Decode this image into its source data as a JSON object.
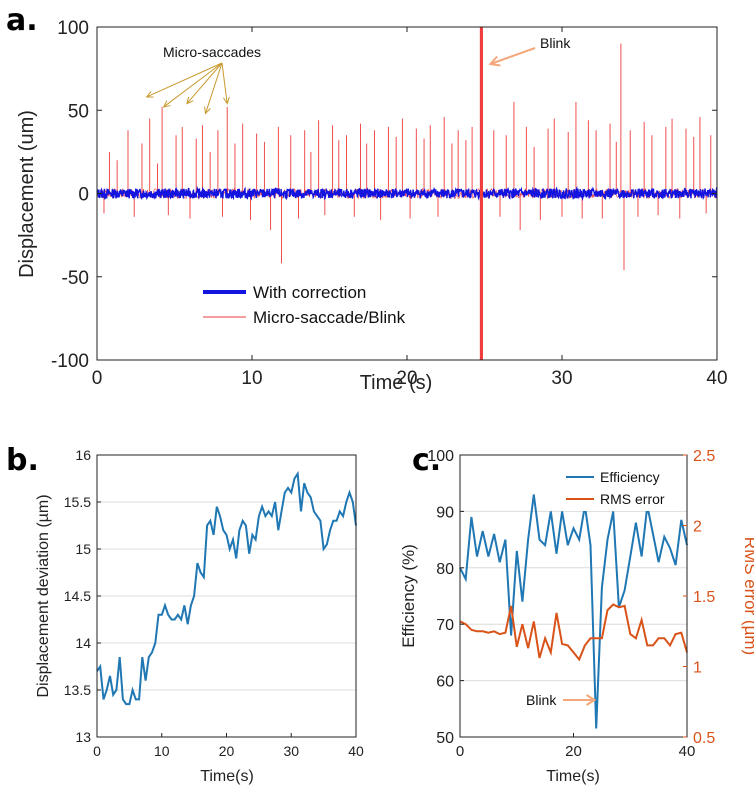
{
  "chart_data": [
    {
      "panel": "a.",
      "type": "line",
      "title": "",
      "xlabel": "Time (s)",
      "ylabel": "Displacement (um)",
      "xlim": [
        0,
        40
      ],
      "ylim": [
        -100,
        100
      ],
      "xticks": [
        "0",
        "10",
        "20",
        "30",
        "40"
      ],
      "yticks": [
        "-100",
        "-50",
        "0",
        "50",
        "100"
      ],
      "grid": false,
      "legend_position": "bottom-left",
      "annotations": [
        {
          "text": "Micro-saccades",
          "color": "#c99a2e",
          "x": 5.5,
          "y": 82,
          "targets": [
            [
              3.2,
              58
            ],
            [
              4.3,
              52
            ],
            [
              5.8,
              54
            ],
            [
              7.0,
              48
            ],
            [
              8.4,
              54
            ]
          ]
        },
        {
          "text": "Blink",
          "color": "#f4a77a",
          "x": 27,
          "y": 90,
          "target": [
            25.0,
            80
          ]
        }
      ],
      "series": [
        {
          "name": "Micro-saccade/Blink",
          "color": "#ee3b3b",
          "baseline_noise": 3,
          "spikes": [
            [
              0.0,
              95
            ],
            [
              0.45,
              -12
            ],
            [
              0.8,
              25
            ],
            [
              1.3,
              20
            ],
            [
              2.0,
              38
            ],
            [
              2.4,
              -14
            ],
            [
              2.9,
              30
            ],
            [
              3.4,
              45
            ],
            [
              3.9,
              18
            ],
            [
              4.2,
              52
            ],
            [
              4.6,
              -13
            ],
            [
              5.1,
              35
            ],
            [
              5.5,
              40
            ],
            [
              6.0,
              -15
            ],
            [
              6.4,
              33
            ],
            [
              6.8,
              41
            ],
            [
              7.3,
              25
            ],
            [
              7.8,
              38
            ],
            [
              8.1,
              -14
            ],
            [
              8.4,
              52
            ],
            [
              8.9,
              30
            ],
            [
              9.4,
              42
            ],
            [
              9.9,
              -16
            ],
            [
              10.3,
              36
            ],
            [
              10.8,
              31
            ],
            [
              11.2,
              -22
            ],
            [
              11.7,
              40
            ],
            [
              11.9,
              -42
            ],
            [
              12.5,
              35
            ],
            [
              13.0,
              -15
            ],
            [
              13.4,
              38
            ],
            [
              13.8,
              25
            ],
            [
              14.3,
              44
            ],
            [
              14.7,
              -13
            ],
            [
              15.2,
              41
            ],
            [
              15.6,
              32
            ],
            [
              16.1,
              35
            ],
            [
              16.6,
              -14
            ],
            [
              17.0,
              42
            ],
            [
              17.4,
              30
            ],
            [
              17.9,
              38
            ],
            [
              18.3,
              -16
            ],
            [
              18.8,
              40
            ],
            [
              19.3,
              34
            ],
            [
              19.7,
              45
            ],
            [
              20.2,
              -15
            ],
            [
              20.6,
              39
            ],
            [
              21.1,
              33
            ],
            [
              21.5,
              41
            ],
            [
              22.0,
              -14
            ],
            [
              22.4,
              46
            ],
            [
              22.9,
              30
            ],
            [
              23.3,
              38
            ],
            [
              23.8,
              32
            ],
            [
              24.2,
              40
            ],
            [
              25.6,
              38
            ],
            [
              26.0,
              -14
            ],
            [
              26.4,
              35
            ],
            [
              26.9,
              55
            ],
            [
              27.3,
              -22
            ],
            [
              27.7,
              40
            ],
            [
              28.2,
              28
            ],
            [
              28.6,
              -16
            ],
            [
              29.1,
              39
            ],
            [
              29.5,
              45
            ],
            [
              30.0,
              -14
            ],
            [
              30.4,
              37
            ],
            [
              30.9,
              55
            ],
            [
              31.3,
              -15
            ],
            [
              31.7,
              44
            ],
            [
              32.2,
              38
            ],
            [
              32.6,
              -15
            ],
            [
              33.1,
              42
            ],
            [
              33.5,
              31
            ],
            [
              33.8,
              90
            ],
            [
              34.0,
              -46
            ],
            [
              34.4,
              38
            ],
            [
              34.9,
              -14
            ],
            [
              35.3,
              43
            ],
            [
              35.8,
              35
            ],
            [
              36.2,
              -13
            ],
            [
              36.7,
              40
            ],
            [
              37.1,
              45
            ],
            [
              37.6,
              -15
            ],
            [
              38.0,
              39
            ],
            [
              38.5,
              34
            ],
            [
              38.9,
              46
            ],
            [
              39.3,
              -12
            ],
            [
              39.6,
              35
            ]
          ],
          "blink": {
            "x": [
              24.7,
              24.9
            ],
            "y": [
              -100,
              100
            ]
          }
        },
        {
          "name": "With correction",
          "color": "#1414e0",
          "band": [
            -3,
            3
          ]
        }
      ]
    },
    {
      "panel": "b.",
      "type": "line",
      "title": "",
      "xlabel": "Time(s)",
      "ylabel": "Displacement deviation (µm)",
      "xlim": [
        0,
        40
      ],
      "ylim": [
        13,
        16
      ],
      "xticks": [
        "0",
        "10",
        "20",
        "30",
        "40"
      ],
      "yticks": [
        "13",
        "13.5",
        "14",
        "14.5",
        "15",
        "15.5",
        "16"
      ],
      "grid": true,
      "series": [
        {
          "name": "",
          "color": "#1f77b4",
          "x": [
            0,
            0.5,
            1,
            1.5,
            2,
            2.5,
            3,
            3.5,
            4,
            4.5,
            5,
            5.5,
            6,
            6.5,
            7,
            7.5,
            8,
            8.5,
            9,
            9.5,
            10,
            10.5,
            11,
            11.5,
            12,
            12.5,
            13,
            13.5,
            14,
            14.5,
            15,
            15.5,
            16,
            16.5,
            17,
            17.5,
            18,
            18.5,
            19,
            19.5,
            20,
            20.5,
            21,
            21.5,
            22,
            22.5,
            23,
            23.5,
            24,
            24.5,
            25,
            25.5,
            26,
            26.5,
            27,
            27.5,
            28,
            28.5,
            29,
            29.5,
            30,
            30.5,
            31,
            31.5,
            32,
            32.5,
            33,
            33.5,
            34,
            34.5,
            35,
            35.5,
            36,
            36.5,
            37,
            37.5,
            38,
            38.5,
            39,
            39.5,
            40
          ],
          "y": [
            13.7,
            13.75,
            13.4,
            13.5,
            13.65,
            13.45,
            13.5,
            13.85,
            13.4,
            13.35,
            13.35,
            13.5,
            13.4,
            13.4,
            13.85,
            13.6,
            13.85,
            13.9,
            14.0,
            14.3,
            14.3,
            14.4,
            14.3,
            14.25,
            14.25,
            14.3,
            14.25,
            14.4,
            14.2,
            14.4,
            14.5,
            14.85,
            14.75,
            14.7,
            15.25,
            15.3,
            15.15,
            15.45,
            15.35,
            15.2,
            15.15,
            15.0,
            15.1,
            14.9,
            15.2,
            15.3,
            15.25,
            14.95,
            15.15,
            15.1,
            15.35,
            15.45,
            15.35,
            15.4,
            15.35,
            15.5,
            15.2,
            15.4,
            15.6,
            15.65,
            15.6,
            15.75,
            15.8,
            15.4,
            15.7,
            15.6,
            15.55,
            15.4,
            15.35,
            15.3,
            15.0,
            15.05,
            15.2,
            15.3,
            15.3,
            15.4,
            15.35,
            15.5,
            15.6,
            15.5,
            15.25
          ]
        }
      ]
    },
    {
      "panel": "c.",
      "type": "line",
      "title": "",
      "xlabel": "Time(s)",
      "ylabel": "Efficiency (%)",
      "y2label": "RMS error (µm)",
      "xlim": [
        0,
        40
      ],
      "ylim": [
        50,
        100
      ],
      "y2lim": [
        0.5,
        2.5
      ],
      "xticks": [
        "0",
        "20",
        "40"
      ],
      "yticks": [
        "50",
        "60",
        "70",
        "80",
        "90",
        "100"
      ],
      "y2ticks": [
        "0.5",
        "1",
        "1.5",
        "2",
        "2.5"
      ],
      "grid": true,
      "legend_position": "top-right",
      "annotations": [
        {
          "text": "Blink",
          "color": "#f4a77a",
          "x": 13,
          "y": 58,
          "target": [
            23.7,
            58
          ]
        }
      ],
      "series": [
        {
          "name": "Efficiency",
          "color": "#1f77b4",
          "axis": "left",
          "x": [
            0,
            1,
            2,
            3,
            4,
            5,
            6,
            7,
            8,
            9,
            10,
            11,
            12,
            13,
            14,
            15,
            16,
            17,
            18,
            19,
            20,
            21,
            22,
            23,
            24,
            25,
            26,
            27,
            28,
            29,
            30,
            31,
            32,
            33,
            34,
            35,
            36,
            37,
            38,
            39,
            40
          ],
          "y": [
            80,
            78,
            89,
            82,
            86.5,
            82,
            86,
            81,
            85,
            68,
            83,
            74,
            85,
            93,
            85,
            84,
            90,
            82.5,
            90,
            84,
            87,
            85,
            91,
            84,
            51.5,
            76.5,
            85,
            90,
            73,
            76,
            82,
            88,
            82,
            91,
            86,
            81,
            85.5,
            83.5,
            80.5,
            88.5,
            84
          ]
        },
        {
          "name": "RMS error",
          "color": "#d95319",
          "axis": "right",
          "x": [
            0,
            1,
            2,
            3,
            4,
            5,
            6,
            7,
            8,
            9,
            10,
            11,
            12,
            13,
            14,
            15,
            16,
            17,
            18,
            19,
            20,
            21,
            22,
            23,
            24,
            25,
            26,
            27,
            28,
            29,
            30,
            31,
            32,
            33,
            34,
            35,
            36,
            37,
            38,
            39,
            40
          ],
          "y": [
            1.32,
            1.3,
            1.26,
            1.25,
            1.25,
            1.24,
            1.25,
            1.23,
            1.24,
            1.43,
            1.14,
            1.3,
            1.13,
            1.32,
            1.06,
            1.2,
            1.1,
            1.38,
            1.16,
            1.15,
            1.1,
            1.05,
            1.15,
            1.2,
            1.2,
            1.2,
            1.4,
            1.44,
            1.42,
            1.43,
            1.23,
            1.2,
            1.33,
            1.15,
            1.15,
            1.2,
            1.2,
            1.15,
            1.23,
            1.24,
            1.1
          ]
        }
      ]
    }
  ]
}
